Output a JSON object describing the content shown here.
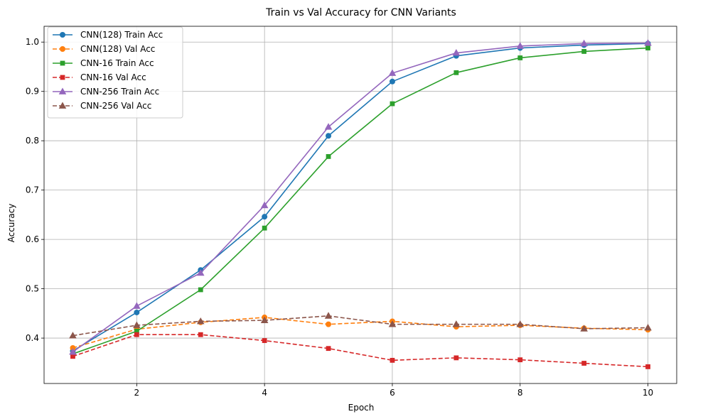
{
  "chart_data": {
    "type": "line",
    "title": "Train vs Val Accuracy for CNN Variants",
    "xlabel": "Epoch",
    "ylabel": "Accuracy",
    "x": [
      1,
      2,
      3,
      4,
      5,
      6,
      7,
      8,
      9,
      10
    ],
    "xlim": [
      0.55,
      10.45
    ],
    "ylim": [
      0.308,
      1.032
    ],
    "xticks": [
      2,
      4,
      6,
      8,
      10
    ],
    "yticks": [
      0.4,
      0.5,
      0.6,
      0.7,
      0.8,
      0.9,
      1.0
    ],
    "xtick_labels": [
      "2",
      "4",
      "6",
      "8",
      "10"
    ],
    "ytick_labels": [
      "0.4",
      "0.5",
      "0.6",
      "0.7",
      "0.8",
      "0.9",
      "1.0"
    ],
    "grid": true,
    "legend_position": "top-left",
    "series": [
      {
        "name": "CNN(128) Train Acc",
        "color": "#1f77b4",
        "dash": "solid",
        "marker": "circle",
        "values": [
          0.374,
          0.452,
          0.538,
          0.646,
          0.81,
          0.92,
          0.972,
          0.988,
          0.994,
          0.997
        ]
      },
      {
        "name": "CNN(128) Val Acc",
        "color": "#ff7f0e",
        "dash": "dashed",
        "marker": "circle",
        "values": [
          0.38,
          0.418,
          0.432,
          0.442,
          0.428,
          0.434,
          0.423,
          0.426,
          0.42,
          0.417
        ]
      },
      {
        "name": "CNN-16 Train Acc",
        "color": "#2ca02c",
        "dash": "solid",
        "marker": "square",
        "values": [
          0.368,
          0.414,
          0.498,
          0.623,
          0.768,
          0.875,
          0.938,
          0.968,
          0.981,
          0.988
        ]
      },
      {
        "name": "CNN-16 Val Acc",
        "color": "#d62728",
        "dash": "dashed",
        "marker": "square",
        "values": [
          0.363,
          0.407,
          0.407,
          0.395,
          0.379,
          0.355,
          0.36,
          0.356,
          0.349,
          0.342
        ]
      },
      {
        "name": "CNN-256 Train Acc",
        "color": "#9467bd",
        "dash": "solid",
        "marker": "triangle",
        "values": [
          0.372,
          0.465,
          0.532,
          0.669,
          0.828,
          0.937,
          0.978,
          0.992,
          0.997,
          0.998
        ]
      },
      {
        "name": "CNN-256 Val Acc",
        "color": "#8c564b",
        "dash": "dashed",
        "marker": "triangle",
        "values": [
          0.405,
          0.426,
          0.434,
          0.436,
          0.445,
          0.428,
          0.428,
          0.428,
          0.419,
          0.421
        ]
      }
    ]
  }
}
